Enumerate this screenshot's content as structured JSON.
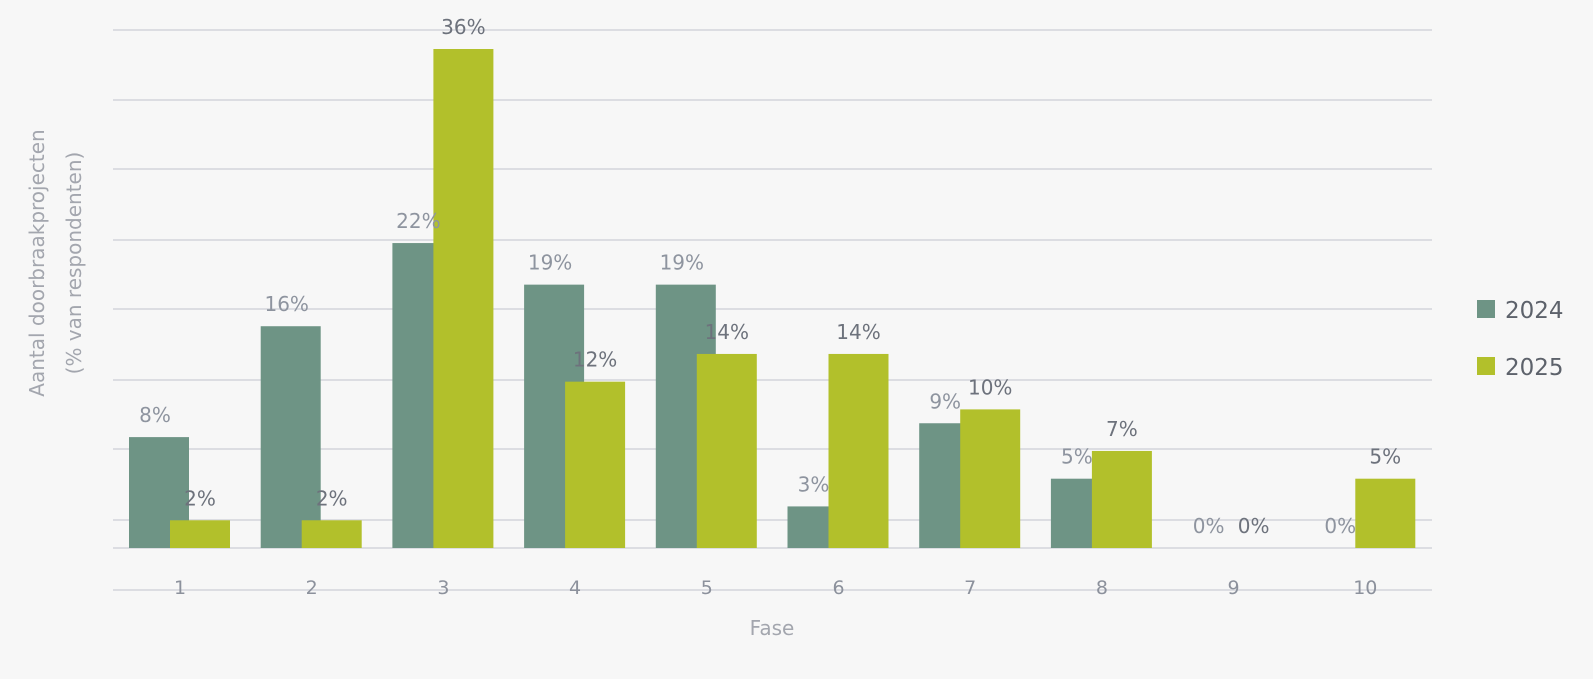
{
  "chart_data": {
    "type": "bar",
    "xlabel": "Fase",
    "ylabel": "Aantal doorbraakprojecten",
    "ylabel_sub": "(% van respondenten)",
    "categories": [
      "1",
      "2",
      "3",
      "4",
      "5",
      "6",
      "7",
      "8",
      "9",
      "10"
    ],
    "series": [
      {
        "name": "2024",
        "color": "#6e9485",
        "values": [
          8,
          16,
          22,
          19,
          19,
          3,
          9,
          5,
          0,
          0
        ],
        "labels": [
          "8%",
          "16%",
          "22%",
          "19%",
          "19%",
          "3%",
          "9%",
          "5%",
          "0%",
          "0%"
        ]
      },
      {
        "name": "2025",
        "color": "#b2c02b",
        "values": [
          2,
          2,
          36,
          12,
          14,
          14,
          10,
          7,
          0,
          5
        ],
        "labels": [
          "2%",
          "2%",
          "36%",
          "12%",
          "14%",
          "14%",
          "10%",
          "7%",
          "0%",
          "5%"
        ]
      }
    ],
    "ylim": [
      0,
      36
    ],
    "grid": true,
    "legend_position": "right"
  }
}
